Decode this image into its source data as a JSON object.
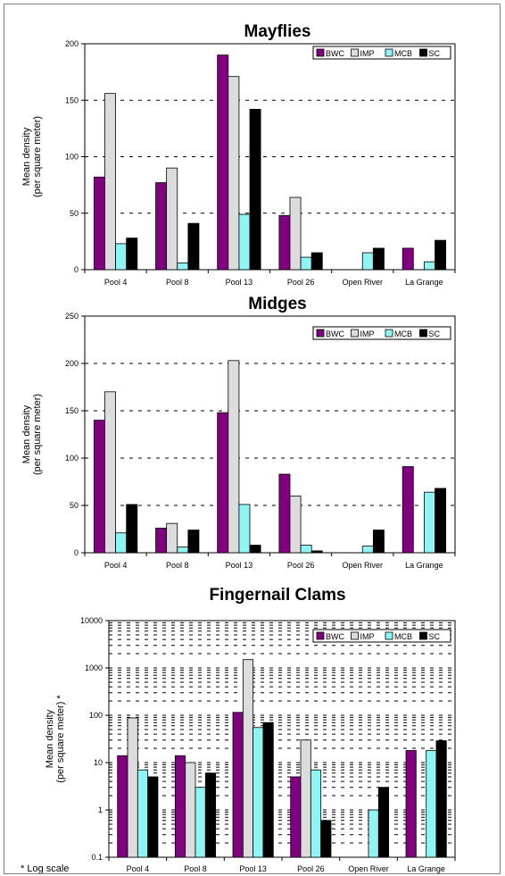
{
  "footnote": "* Log scale",
  "chart_data": [
    {
      "type": "bar",
      "title": "Mayflies",
      "ylabel": [
        "Mean density",
        "(per square meter)"
      ],
      "ylim": [
        0,
        200
      ],
      "yticks": [
        0,
        50,
        100,
        150,
        200
      ],
      "scale": "linear",
      "grid": "horizontal dashed",
      "legend": "top-right",
      "categories": [
        "Pool 4",
        "Pool 8",
        "Pool 13",
        "Pool 26",
        "Open River",
        "La Grange"
      ],
      "series": [
        {
          "name": "BWC",
          "color": "#800080",
          "values": [
            82,
            77,
            190,
            48,
            0,
            19
          ]
        },
        {
          "name": "IMP",
          "color": "#dcdcdc",
          "values": [
            156,
            90,
            171,
            64,
            0,
            0
          ]
        },
        {
          "name": "MCB",
          "color": "#8ef4f4",
          "values": [
            23,
            6,
            49,
            11,
            15,
            7
          ]
        },
        {
          "name": "SC",
          "color": "#000000",
          "values": [
            28,
            41,
            142,
            15,
            19,
            26
          ]
        }
      ]
    },
    {
      "type": "bar",
      "title": "Midges",
      "ylabel": [
        "Mean density",
        "(per square meter)"
      ],
      "ylim": [
        0,
        250
      ],
      "yticks": [
        0,
        50,
        100,
        150,
        200,
        250
      ],
      "scale": "linear",
      "grid": "horizontal dashed",
      "legend": "top-right",
      "categories": [
        "Pool 4",
        "Pool 8",
        "Pool 13",
        "Pool 26",
        "Open River",
        "La Grange"
      ],
      "series": [
        {
          "name": "BWC",
          "color": "#800080",
          "values": [
            140,
            26,
            148,
            83,
            0,
            91
          ]
        },
        {
          "name": "IMP",
          "color": "#dcdcdc",
          "values": [
            170,
            31,
            203,
            60,
            0,
            0
          ]
        },
        {
          "name": "MCB",
          "color": "#8ef4f4",
          "values": [
            21,
            6,
            51,
            8,
            7,
            64
          ]
        },
        {
          "name": "SC",
          "color": "#000000",
          "values": [
            51,
            24,
            8,
            2,
            24,
            68
          ]
        }
      ]
    },
    {
      "type": "bar",
      "title": "Fingernail Clams",
      "ylabel": [
        "Mean density",
        "(per square meter) *"
      ],
      "ylim": [
        0.1,
        10000
      ],
      "yticks": [
        0.1,
        1,
        10,
        100,
        1000,
        10000
      ],
      "ytick_labels": [
        "0.1",
        "1",
        "10",
        "100",
        "1000",
        "10000"
      ],
      "scale": "log",
      "grid": "horizontal dashed, minor log gridlines",
      "legend": "top-right",
      "categories": [
        "Pool 4",
        "Pool 8",
        "Pool 13",
        "Pool 26",
        "Open River",
        "La Grange"
      ],
      "series": [
        {
          "name": "BWC",
          "color": "#800080",
          "values": [
            14,
            14,
            115,
            5,
            null,
            18
          ]
        },
        {
          "name": "IMP",
          "color": "#dcdcdc",
          "values": [
            88,
            10,
            1500,
            30,
            null,
            null
          ]
        },
        {
          "name": "MCB",
          "color": "#8ef4f4",
          "values": [
            7,
            3,
            55,
            7,
            1,
            18
          ]
        },
        {
          "name": "SC",
          "color": "#000000",
          "values": [
            5,
            6,
            70,
            0.6,
            3,
            29
          ]
        }
      ]
    }
  ]
}
